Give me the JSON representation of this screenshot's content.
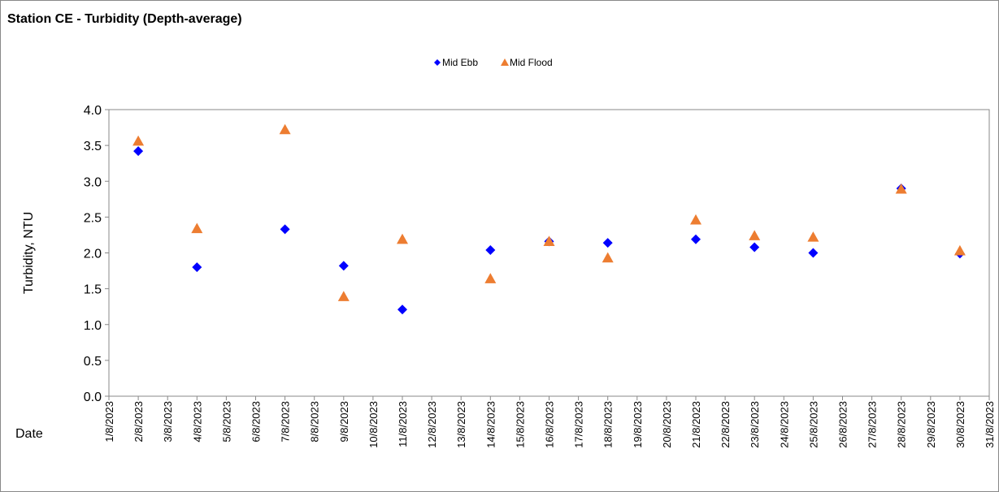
{
  "chart_data": {
    "type": "scatter",
    "title": "Station CE - Turbidity (Depth-average)",
    "xlabel": "Date",
    "ylabel": "Turbidity, NTU",
    "ylim": [
      0,
      4
    ],
    "yticks": [
      "0.0",
      "0.5",
      "1.0",
      "1.5",
      "2.0",
      "2.5",
      "3.0",
      "3.5",
      "4.0"
    ],
    "categories": [
      "1/8/2023",
      "2/8/2023",
      "3/8/2023",
      "4/8/2023",
      "5/8/2023",
      "6/8/2023",
      "7/8/2023",
      "8/8/2023",
      "9/8/2023",
      "10/8/2023",
      "11/8/2023",
      "12/8/2023",
      "13/8/2023",
      "14/8/2023",
      "15/8/2023",
      "16/8/2023",
      "17/8/2023",
      "18/8/2023",
      "19/8/2023",
      "20/8/2023",
      "21/8/2023",
      "22/8/2023",
      "23/8/2023",
      "24/8/2023",
      "25/8/2023",
      "26/8/2023",
      "27/8/2023",
      "28/8/2023",
      "29/8/2023",
      "30/8/2023",
      "31/8/2023"
    ],
    "grid": false,
    "legend_position": "top-center",
    "series": [
      {
        "name": "Mid Ebb",
        "marker": "diamond",
        "color": "#0000FF",
        "points": [
          {
            "x": "2/8/2023",
            "y": 3.42
          },
          {
            "x": "4/8/2023",
            "y": 1.8
          },
          {
            "x": "7/8/2023",
            "y": 2.33
          },
          {
            "x": "9/8/2023",
            "y": 1.82
          },
          {
            "x": "11/8/2023",
            "y": 1.21
          },
          {
            "x": "14/8/2023",
            "y": 2.04
          },
          {
            "x": "16/8/2023",
            "y": 2.16
          },
          {
            "x": "18/8/2023",
            "y": 2.14
          },
          {
            "x": "21/8/2023",
            "y": 2.19
          },
          {
            "x": "23/8/2023",
            "y": 2.08
          },
          {
            "x": "25/8/2023",
            "y": 2.0
          },
          {
            "x": "28/8/2023",
            "y": 2.9
          },
          {
            "x": "30/8/2023",
            "y": 1.99
          }
        ]
      },
      {
        "name": "Mid Flood",
        "marker": "triangle",
        "color": "#ED7D31",
        "points": [
          {
            "x": "2/8/2023",
            "y": 3.56
          },
          {
            "x": "4/8/2023",
            "y": 2.34
          },
          {
            "x": "7/8/2023",
            "y": 3.72
          },
          {
            "x": "9/8/2023",
            "y": 1.39
          },
          {
            "x": "11/8/2023",
            "y": 2.19
          },
          {
            "x": "14/8/2023",
            "y": 1.64
          },
          {
            "x": "16/8/2023",
            "y": 2.16
          },
          {
            "x": "18/8/2023",
            "y": 1.93
          },
          {
            "x": "21/8/2023",
            "y": 2.46
          },
          {
            "x": "23/8/2023",
            "y": 2.24
          },
          {
            "x": "25/8/2023",
            "y": 2.22
          },
          {
            "x": "28/8/2023",
            "y": 2.89
          },
          {
            "x": "30/8/2023",
            "y": 2.03
          }
        ]
      }
    ]
  }
}
